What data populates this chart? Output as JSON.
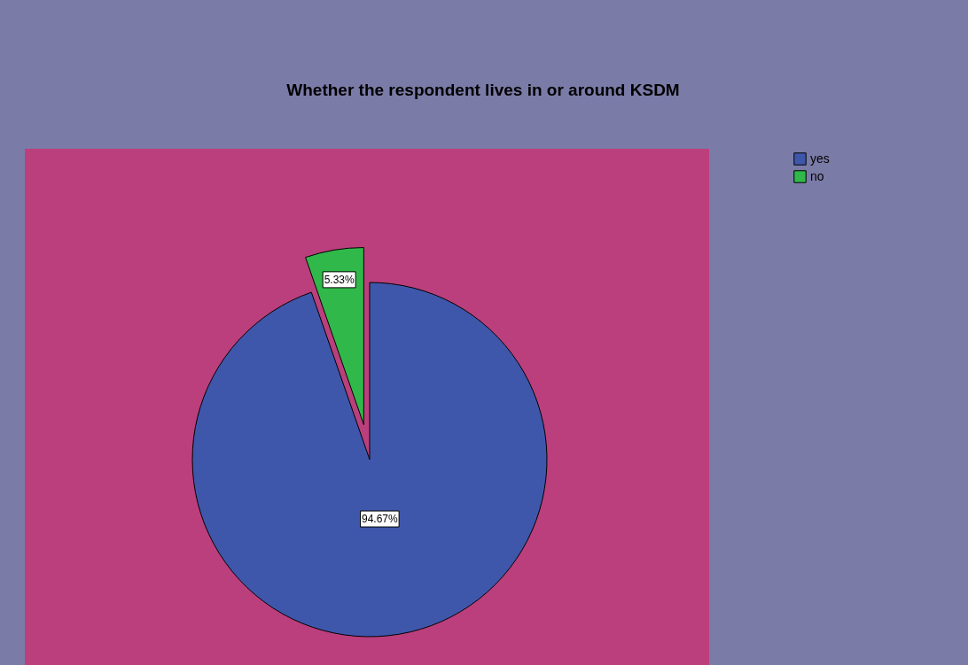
{
  "chart_data": {
    "type": "pie",
    "title": "Whether the respondent lives in or around KSDM",
    "categories": [
      "yes",
      "no"
    ],
    "values": [
      94.67,
      5.33
    ],
    "colors": [
      "#3f57ab",
      "#30b94a"
    ],
    "value_labels": [
      "94.67%",
      "5.33%"
    ],
    "legend": "top right"
  }
}
